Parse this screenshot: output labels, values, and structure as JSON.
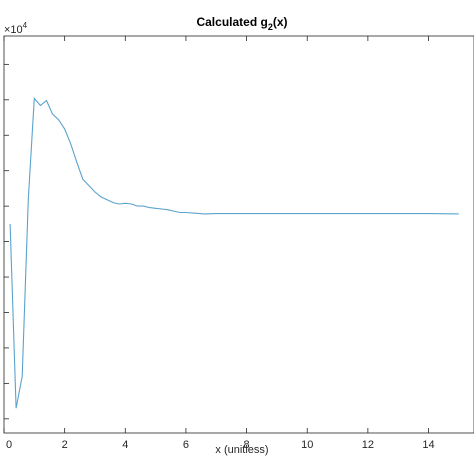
{
  "chart_data": {
    "type": "line",
    "title_main": "Calculated g",
    "title_sub": "2",
    "title_tail": "(x)",
    "xlabel": "x (unitless)",
    "ylabel": "",
    "exponent_base": "×10",
    "exponent_power": "4",
    "xlim": [
      0,
      15.5
    ],
    "ylim": [
      -3.7,
      1.9
    ],
    "x_ticks": [
      0,
      2,
      4,
      6,
      8,
      10,
      12,
      14
    ],
    "x_tick_labels": [
      "0",
      "2",
      "4",
      "6",
      "8",
      "10",
      "12",
      "14"
    ],
    "y_ticks": [
      -3.5,
      -3,
      -2.5,
      -2,
      -1.5,
      -1,
      -0.5,
      0,
      0.5,
      1,
      1.5
    ],
    "grid": false,
    "line_color": "#5aa3cc",
    "series": [
      {
        "x": [
          0.2,
          0.4,
          0.6,
          0.8,
          1.0,
          1.2,
          1.4,
          1.6,
          1.8,
          2.0,
          2.2,
          2.4,
          2.6,
          2.8,
          3.0,
          3.2,
          3.4,
          3.6,
          3.8,
          4.0,
          4.2,
          4.4,
          4.6,
          4.8,
          5.0,
          5.2,
          5.4,
          5.6,
          5.8,
          6.0,
          6.3,
          6.6,
          7.0,
          7.5,
          8.0,
          9.0,
          10.0,
          11.0,
          12.0,
          13.0,
          14.0,
          15.0
        ],
        "y": [
          -0.75,
          -3.35,
          -2.9,
          -0.4,
          1.02,
          0.92,
          0.99,
          0.8,
          0.72,
          0.59,
          0.38,
          0.12,
          -0.12,
          -0.21,
          -0.3,
          -0.37,
          -0.41,
          -0.45,
          -0.47,
          -0.46,
          -0.47,
          -0.5,
          -0.5,
          -0.52,
          -0.53,
          -0.54,
          -0.55,
          -0.57,
          -0.59,
          -0.59,
          -0.6,
          -0.61,
          -0.605,
          -0.605,
          -0.605,
          -0.605,
          -0.605,
          -0.605,
          -0.605,
          -0.605,
          -0.605,
          -0.61
        ]
      }
    ]
  }
}
